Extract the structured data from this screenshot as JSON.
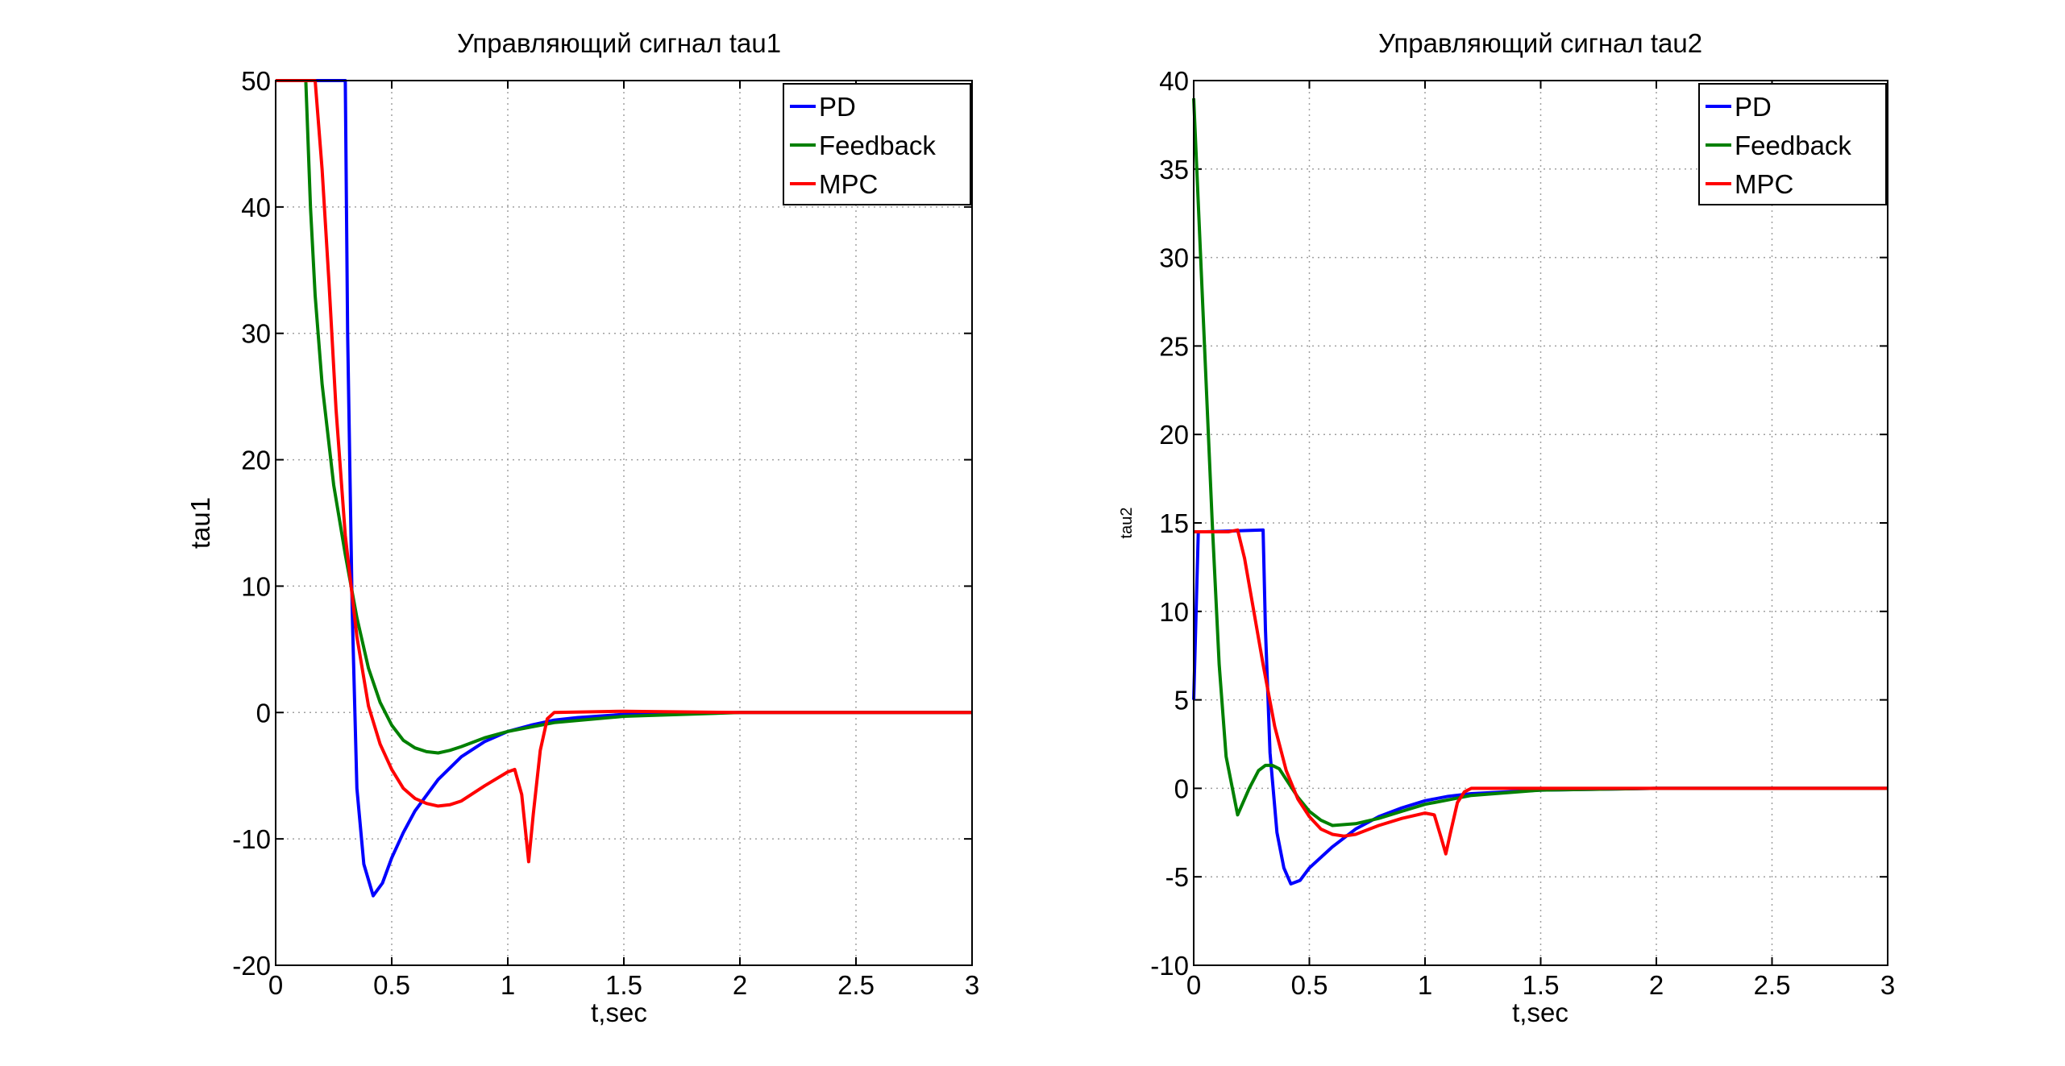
{
  "chart_data": [
    {
      "type": "line",
      "title": "Управляющий сигнал tau1",
      "xlabel": "t,sec",
      "ylabel": "tau1",
      "xlim": [
        0,
        3
      ],
      "ylim": [
        -20,
        50
      ],
      "xticks": [
        "0",
        "0.5",
        "1",
        "1.5",
        "2",
        "2.5",
        "3"
      ],
      "yticks": [
        "-20",
        "-10",
        "0",
        "10",
        "20",
        "30",
        "40",
        "50"
      ],
      "grid": true,
      "legend_position": "top-right",
      "series": [
        {
          "name": "PD",
          "color": "#0000ff",
          "x": [
            0,
            0.29,
            0.3,
            0.31,
            0.33,
            0.35,
            0.38,
            0.42,
            0.46,
            0.5,
            0.55,
            0.6,
            0.7,
            0.8,
            0.9,
            1.0,
            1.1,
            1.2,
            1.3,
            1.5,
            1.7,
            2.0,
            2.5,
            3.0
          ],
          "y": [
            50,
            50,
            50,
            30,
            8,
            -6,
            -12,
            -14.5,
            -13.5,
            -11.5,
            -9.5,
            -7.8,
            -5.3,
            -3.5,
            -2.3,
            -1.5,
            -1.0,
            -0.6,
            -0.4,
            -0.15,
            -0.05,
            0,
            0,
            0
          ]
        },
        {
          "name": "Feedback",
          "color": "#008000",
          "x": [
            0,
            0.13,
            0.15,
            0.17,
            0.2,
            0.25,
            0.3,
            0.35,
            0.4,
            0.45,
            0.5,
            0.55,
            0.6,
            0.65,
            0.7,
            0.75,
            0.8,
            0.9,
            1.0,
            1.2,
            1.5,
            2.0,
            2.5,
            3.0
          ],
          "y": [
            50,
            50,
            40,
            33,
            26,
            18,
            12.5,
            7.5,
            3.5,
            0.8,
            -1.0,
            -2.2,
            -2.8,
            -3.1,
            -3.2,
            -3.0,
            -2.7,
            -2.0,
            -1.5,
            -0.8,
            -0.3,
            0,
            0,
            0
          ]
        },
        {
          "name": "MPC",
          "color": "#ff0000",
          "x": [
            0,
            0.17,
            0.2,
            0.23,
            0.26,
            0.3,
            0.35,
            0.4,
            0.45,
            0.5,
            0.55,
            0.6,
            0.65,
            0.7,
            0.75,
            0.8,
            0.9,
            1.0,
            1.03,
            1.06,
            1.08,
            1.09,
            1.11,
            1.14,
            1.17,
            1.2,
            1.5,
            2.0,
            3.0
          ],
          "y": [
            50,
            50,
            43,
            34,
            24,
            14,
            6,
            0.5,
            -2.5,
            -4.5,
            -6.0,
            -6.8,
            -7.2,
            -7.4,
            -7.3,
            -7.0,
            -5.8,
            -4.7,
            -4.5,
            -6.5,
            -10,
            -11.8,
            -8,
            -3,
            -0.5,
            0,
            0.1,
            0,
            0
          ]
        }
      ]
    },
    {
      "type": "line",
      "title": "Управляющий сигнал tau2",
      "xlabel": "t,sec",
      "ylabel": "tau2",
      "xlim": [
        0,
        3
      ],
      "ylim": [
        -10,
        40
      ],
      "xticks": [
        "0",
        "0.5",
        "1",
        "1.5",
        "2",
        "2.5",
        "3"
      ],
      "yticks": [
        "-10",
        "-5",
        "0",
        "5",
        "10",
        "15",
        "20",
        "25",
        "30",
        "35",
        "40"
      ],
      "grid": true,
      "legend_position": "top-right",
      "series": [
        {
          "name": "PD",
          "color": "#0000ff",
          "x": [
            0,
            0.02,
            0.05,
            0.3,
            0.31,
            0.33,
            0.36,
            0.39,
            0.42,
            0.46,
            0.5,
            0.6,
            0.7,
            0.8,
            0.9,
            1.0,
            1.1,
            1.2,
            1.5,
            2.0,
            3.0
          ],
          "y": [
            5,
            14.5,
            14.5,
            14.6,
            9,
            2,
            -2.5,
            -4.5,
            -5.4,
            -5.2,
            -4.5,
            -3.3,
            -2.3,
            -1.6,
            -1.1,
            -0.7,
            -0.45,
            -0.3,
            -0.1,
            0,
            0
          ]
        },
        {
          "name": "Feedback",
          "color": "#008000",
          "x": [
            0,
            0.04,
            0.08,
            0.11,
            0.14,
            0.19,
            0.24,
            0.28,
            0.31,
            0.34,
            0.37,
            0.4,
            0.45,
            0.5,
            0.55,
            0.6,
            0.7,
            0.8,
            0.9,
            1.0,
            1.2,
            1.5,
            2.0,
            3.0
          ],
          "y": [
            39,
            27,
            15,
            7,
            1.8,
            -1.5,
            0,
            1.0,
            1.3,
            1.3,
            1.1,
            0.5,
            -0.5,
            -1.3,
            -1.8,
            -2.1,
            -2.0,
            -1.7,
            -1.3,
            -0.9,
            -0.4,
            -0.1,
            0,
            0
          ]
        },
        {
          "name": "MPC",
          "color": "#ff0000",
          "x": [
            0,
            0.05,
            0.15,
            0.19,
            0.22,
            0.26,
            0.3,
            0.35,
            0.4,
            0.45,
            0.5,
            0.55,
            0.6,
            0.65,
            0.7,
            0.8,
            0.9,
            1.0,
            1.04,
            1.07,
            1.09,
            1.11,
            1.14,
            1.17,
            1.2,
            1.5,
            2.0,
            3.0
          ],
          "y": [
            14.5,
            14.5,
            14.5,
            14.6,
            13,
            10,
            7,
            3.5,
            1,
            -0.6,
            -1.6,
            -2.3,
            -2.6,
            -2.7,
            -2.6,
            -2.1,
            -1.7,
            -1.4,
            -1.5,
            -2.8,
            -3.7,
            -2.5,
            -0.8,
            -0.2,
            0,
            0,
            0,
            0
          ]
        }
      ]
    }
  ]
}
